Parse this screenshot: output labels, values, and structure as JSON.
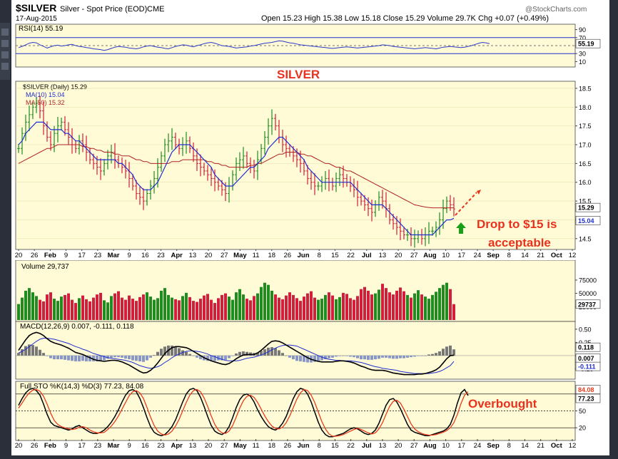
{
  "header": {
    "symbol": "$SILVER",
    "name": "Silver - Spot Price (EOD)",
    "exchange": "CME",
    "date": "17-Aug-2015",
    "ohlc": "Open 15.23  High 15.38  Low 15.18  Close 15.29  Volume 29.7K  Chg +0.07 (+0.49%)",
    "watermark": "@StockCharts.com"
  },
  "colors": {
    "panel_bg": "#fffbd6",
    "frame": "#2b2f3a",
    "up_bar": "#1e8c1e",
    "down_bar": "#d21e3c",
    "ma10": "#1f2fd0",
    "ma50": "#b22222",
    "annotation": "#e8321e",
    "rsi_line": "#2a3bc9",
    "macd_hist": "#8896c8",
    "sto_d": "#e83c1e"
  },
  "chart_data": [
    {
      "panel": "rsi",
      "type": "line",
      "legend": "RSI(14) 55.19",
      "last_value_label": "55.19",
      "y_ticks": [
        "90",
        "70",
        "50",
        "30",
        "10"
      ],
      "ylim": [
        0,
        100
      ],
      "reference_lines": [
        70,
        30
      ],
      "values": [
        45,
        48,
        52,
        56,
        58,
        57,
        52,
        48,
        44,
        47,
        50,
        51,
        49,
        50,
        52,
        53,
        50,
        48,
        47,
        45,
        44,
        42,
        41,
        40,
        38,
        40,
        43,
        46,
        48,
        47,
        46,
        44,
        43,
        42,
        44,
        47,
        49,
        50,
        48,
        46,
        45,
        43,
        42,
        45,
        48,
        50,
        52,
        51,
        49,
        47,
        50,
        52,
        55,
        57,
        58,
        56,
        53,
        50,
        49,
        48,
        46,
        44,
        45,
        46,
        47,
        49,
        50,
        52,
        54,
        56,
        57,
        58,
        60,
        62,
        61,
        59,
        57,
        56,
        54,
        52,
        51,
        50,
        49,
        48,
        47,
        46,
        45,
        44,
        43,
        44,
        45,
        46,
        47,
        46,
        45,
        44,
        45,
        46,
        47,
        48,
        49,
        50,
        52,
        51,
        50,
        48,
        47,
        46,
        45,
        44,
        43,
        42,
        43,
        44,
        45,
        44,
        43,
        42,
        44,
        46,
        47,
        48,
        47,
        46,
        45,
        46,
        48,
        50,
        53,
        56,
        58,
        57,
        55
      ]
    },
    {
      "panel": "price",
      "type": "ohlc",
      "title": "SILVER",
      "legend": [
        "$SILVER (Daily) 15.29",
        "MA(10) 15.04",
        "MA(50) 15.32"
      ],
      "price_tags": [
        "15.29",
        "15.04"
      ],
      "y_ticks": [
        "18.5",
        "18.0",
        "17.5",
        "17.0",
        "16.5",
        "16.0",
        "15.5",
        "15.0",
        "14.5"
      ],
      "ylim": [
        14.25,
        18.65
      ],
      "annotation": [
        "Drop to $15 is",
        "acceptable"
      ],
      "x_tick_labels": [
        "20",
        "26",
        "Feb",
        "9",
        "17",
        "23",
        "Mar",
        "9",
        "16",
        "23",
        "Apr",
        "13",
        "20",
        "27",
        "May",
        "11",
        "18",
        "26",
        "Jun",
        "8",
        "15",
        "22",
        "Jul",
        "13",
        "20",
        "27",
        "Aug",
        "10",
        "17",
        "24",
        "Sep",
        "8",
        "14",
        "21",
        "Oct",
        "12"
      ],
      "closes": [
        16.9,
        17.3,
        17.6,
        17.8,
        18.0,
        18.1,
        17.9,
        17.5,
        17.2,
        17.0,
        17.3,
        17.5,
        17.6,
        17.4,
        17.2,
        17.0,
        16.9,
        17.1,
        17.0,
        16.8,
        16.6,
        16.5,
        16.4,
        16.3,
        16.5,
        16.7,
        16.8,
        16.6,
        16.5,
        16.4,
        16.3,
        16.1,
        15.9,
        15.7,
        15.6,
        15.5,
        15.7,
        15.9,
        16.1,
        16.4,
        16.7,
        17.0,
        17.1,
        17.2,
        17.0,
        16.9,
        17.0,
        17.1,
        16.9,
        16.7,
        16.5,
        16.4,
        16.3,
        16.2,
        16.1,
        16.0,
        15.9,
        15.8,
        15.7,
        15.9,
        16.2,
        16.5,
        16.6,
        16.7,
        16.5,
        16.4,
        16.3,
        16.6,
        16.9,
        17.2,
        17.5,
        17.7,
        17.5,
        17.2,
        17.0,
        16.9,
        16.8,
        16.7,
        16.6,
        16.5,
        16.3,
        16.1,
        16.0,
        15.9,
        15.9,
        16.0,
        16.1,
        16.0,
        15.9,
        16.1,
        16.2,
        16.1,
        16.0,
        15.9,
        15.8,
        15.6,
        15.5,
        15.4,
        15.3,
        15.2,
        15.4,
        15.6,
        15.5,
        15.3,
        15.0,
        14.9,
        14.8,
        14.7,
        14.6,
        14.6,
        14.5,
        14.5,
        14.6,
        14.5,
        14.6,
        14.7,
        14.7,
        14.8,
        15.0,
        15.3,
        15.5,
        15.4,
        15.29
      ],
      "ma10": [
        17.0,
        17.1,
        17.3,
        17.4,
        17.5,
        17.6,
        17.6,
        17.6,
        17.5,
        17.4,
        17.4,
        17.4,
        17.4,
        17.3,
        17.3,
        17.2,
        17.1,
        17.1,
        17.0,
        16.9,
        16.8,
        16.7,
        16.6,
        16.6,
        16.6,
        16.6,
        16.6,
        16.6,
        16.5,
        16.5,
        16.4,
        16.3,
        16.2,
        16.0,
        15.9,
        15.8,
        15.8,
        15.8,
        15.9,
        16.0,
        16.2,
        16.4,
        16.6,
        16.8,
        16.9,
        17.0,
        17.0,
        17.0,
        17.0,
        16.9,
        16.8,
        16.7,
        16.6,
        16.5,
        16.4,
        16.2,
        16.1,
        16.0,
        15.9,
        15.9,
        15.9,
        16.0,
        16.1,
        16.2,
        16.3,
        16.4,
        16.4,
        16.5,
        16.6,
        16.7,
        16.9,
        17.0,
        17.1,
        17.2,
        17.2,
        17.1,
        17.0,
        16.9,
        16.8,
        16.7,
        16.6,
        16.4,
        16.3,
        16.2,
        16.1,
        16.0,
        16.0,
        16.0,
        16.0,
        16.0,
        16.0,
        16.0,
        16.0,
        16.0,
        15.9,
        15.8,
        15.7,
        15.6,
        15.5,
        15.4,
        15.4,
        15.4,
        15.4,
        15.3,
        15.2,
        15.1,
        15.0,
        14.9,
        14.8,
        14.7,
        14.6,
        14.6,
        14.6,
        14.6,
        14.6,
        14.6,
        14.6,
        14.7,
        14.8,
        14.9,
        15.0,
        15.0,
        15.04
      ],
      "ma50": [
        16.5,
        16.55,
        16.6,
        16.65,
        16.7,
        16.75,
        16.8,
        16.85,
        16.9,
        16.9,
        16.95,
        17.0,
        17.0,
        17.0,
        17.0,
        17.0,
        17.0,
        17.0,
        16.95,
        16.95,
        16.9,
        16.9,
        16.85,
        16.85,
        16.8,
        16.8,
        16.8,
        16.75,
        16.75,
        16.7,
        16.7,
        16.7,
        16.65,
        16.6,
        16.6,
        16.55,
        16.55,
        16.5,
        16.5,
        16.5,
        16.5,
        16.5,
        16.5,
        16.55,
        16.55,
        16.55,
        16.6,
        16.6,
        16.6,
        16.6,
        16.6,
        16.6,
        16.6,
        16.55,
        16.55,
        16.5,
        16.5,
        16.45,
        16.45,
        16.4,
        16.4,
        16.4,
        16.4,
        16.4,
        16.4,
        16.45,
        16.45,
        16.5,
        16.5,
        16.55,
        16.6,
        16.65,
        16.7,
        16.75,
        16.75,
        16.8,
        16.8,
        16.8,
        16.8,
        16.75,
        16.75,
        16.7,
        16.7,
        16.65,
        16.6,
        16.55,
        16.5,
        16.5,
        16.45,
        16.4,
        16.4,
        16.35,
        16.3,
        16.3,
        16.25,
        16.2,
        16.15,
        16.1,
        16.05,
        16.0,
        15.95,
        15.9,
        15.85,
        15.8,
        15.75,
        15.7,
        15.65,
        15.6,
        15.55,
        15.5,
        15.45,
        15.4,
        15.38,
        15.36,
        15.34,
        15.33,
        15.32,
        15.32,
        15.32,
        15.32,
        15.32,
        15.32,
        15.32
      ]
    },
    {
      "panel": "volume",
      "type": "bar",
      "legend": "Volume 29,737",
      "last_value_label": "29737",
      "y_ticks": [
        "75000",
        "50000",
        "25000"
      ],
      "ylim": [
        0,
        95000
      ],
      "values": [
        30000,
        42000,
        55000,
        60000,
        52000,
        45000,
        38000,
        35000,
        48000,
        52000,
        40000,
        36000,
        44000,
        47000,
        50000,
        38000,
        32000,
        41000,
        46000,
        39000,
        35000,
        42000,
        48000,
        51000,
        37000,
        33000,
        45000,
        50000,
        54000,
        42000,
        38000,
        46000,
        40000,
        36000,
        43000,
        48000,
        52000,
        44000,
        38000,
        41000,
        55000,
        60000,
        47000,
        42000,
        39000,
        37000,
        45000,
        51000,
        43000,
        36000,
        34000,
        40000,
        46000,
        49000,
        38000,
        32000,
        41000,
        47000,
        50000,
        44000,
        38000,
        52000,
        58000,
        48000,
        40000,
        37000,
        45000,
        50000,
        62000,
        70000,
        66000,
        55000,
        48000,
        42000,
        39000,
        46000,
        52000,
        47000,
        41000,
        36000,
        44000,
        50000,
        54000,
        42000,
        38000,
        40000,
        47000,
        52000,
        46000,
        39000,
        43000,
        51000,
        49000,
        41000,
        38000,
        45000,
        58000,
        62000,
        55000,
        48000,
        50000,
        57000,
        68000,
        60000,
        52000,
        48000,
        55000,
        61000,
        54000,
        47000,
        42000,
        50000,
        56000,
        48000,
        44000,
        40000,
        47000,
        53000,
        60000,
        66000,
        70000,
        58000,
        29737
      ]
    },
    {
      "panel": "macd",
      "type": "line",
      "legend": "MACD(12,26,9) 0.007, -0.111, 0.118",
      "value_tags": [
        "0.118",
        "0.007",
        "-0.111"
      ],
      "y_ticks": [
        "0.50",
        "0.25",
        "0.00",
        "-0.25"
      ],
      "ylim": [
        -0.42,
        0.62
      ],
      "macd": [
        0.1,
        0.2,
        0.3,
        0.38,
        0.42,
        0.44,
        0.42,
        0.38,
        0.32,
        0.27,
        0.24,
        0.22,
        0.2,
        0.17,
        0.14,
        0.1,
        0.06,
        0.04,
        0.02,
        -0.01,
        -0.04,
        -0.07,
        -0.09,
        -0.1,
        -0.11,
        -0.1,
        -0.09,
        -0.09,
        -0.1,
        -0.12,
        -0.15,
        -0.18,
        -0.22,
        -0.26,
        -0.3,
        -0.33,
        -0.32,
        -0.28,
        -0.22,
        -0.14,
        -0.05,
        0.04,
        0.1,
        0.15,
        0.17,
        0.17,
        0.16,
        0.15,
        0.12,
        0.08,
        0.04,
        0.0,
        -0.04,
        -0.07,
        -0.1,
        -0.12,
        -0.14,
        -0.16,
        -0.17,
        -0.15,
        -0.11,
        -0.06,
        -0.02,
        0.01,
        0.02,
        0.02,
        0.02,
        0.05,
        0.1,
        0.16,
        0.22,
        0.27,
        0.28,
        0.27,
        0.24,
        0.2,
        0.16,
        0.12,
        0.08,
        0.04,
        0.0,
        -0.04,
        -0.07,
        -0.09,
        -0.11,
        -0.12,
        -0.12,
        -0.12,
        -0.12,
        -0.11,
        -0.1,
        -0.1,
        -0.11,
        -0.12,
        -0.14,
        -0.17,
        -0.2,
        -0.22,
        -0.25,
        -0.27,
        -0.28,
        -0.28,
        -0.28,
        -0.29,
        -0.31,
        -0.33,
        -0.34,
        -0.35,
        -0.36,
        -0.36,
        -0.36,
        -0.36,
        -0.35,
        -0.35,
        -0.34,
        -0.32,
        -0.3,
        -0.27,
        -0.22,
        -0.14,
        -0.06,
        0.0,
        0.007
      ],
      "signal": [
        0.05,
        0.08,
        0.12,
        0.17,
        0.22,
        0.27,
        0.31,
        0.33,
        0.33,
        0.32,
        0.31,
        0.29,
        0.27,
        0.25,
        0.23,
        0.2,
        0.17,
        0.15,
        0.12,
        0.1,
        0.07,
        0.04,
        0.02,
        0.0,
        -0.02,
        -0.04,
        -0.05,
        -0.06,
        -0.07,
        -0.08,
        -0.09,
        -0.11,
        -0.13,
        -0.16,
        -0.19,
        -0.21,
        -0.23,
        -0.24,
        -0.23,
        -0.21,
        -0.18,
        -0.13,
        -0.09,
        -0.04,
        0.0,
        0.03,
        0.06,
        0.08,
        0.09,
        0.09,
        0.08,
        0.07,
        0.05,
        0.03,
        0.0,
        -0.02,
        -0.05,
        -0.07,
        -0.09,
        -0.1,
        -0.1,
        -0.1,
        -0.09,
        -0.07,
        -0.05,
        -0.04,
        -0.03,
        -0.01,
        0.01,
        0.04,
        0.07,
        0.11,
        0.14,
        0.17,
        0.19,
        0.2,
        0.2,
        0.19,
        0.18,
        0.15,
        0.12,
        0.09,
        0.06,
        0.03,
        0.0,
        -0.03,
        -0.05,
        -0.07,
        -0.08,
        -0.09,
        -0.09,
        -0.1,
        -0.1,
        -0.1,
        -0.11,
        -0.12,
        -0.13,
        -0.15,
        -0.17,
        -0.19,
        -0.21,
        -0.22,
        -0.24,
        -0.25,
        -0.26,
        -0.27,
        -0.28,
        -0.3,
        -0.31,
        -0.32,
        -0.33,
        -0.34,
        -0.34,
        -0.34,
        -0.34,
        -0.34,
        -0.33,
        -0.32,
        -0.3,
        -0.27,
        -0.23,
        -0.19,
        -0.111
      ]
    },
    {
      "panel": "stochastic",
      "type": "line",
      "legend": "Full STO %K(14,3) %D(3) 77.23, 84.08",
      "value_tags": [
        "84.08",
        "77.23"
      ],
      "annotation": "Overbought",
      "y_ticks": [
        "80",
        "50",
        "20"
      ],
      "ylim": [
        0,
        100
      ],
      "reference_lines": [
        80,
        50,
        20
      ],
      "k": [
        60,
        72,
        82,
        88,
        90,
        86,
        78,
        62,
        44,
        30,
        24,
        22,
        20,
        18,
        16,
        18,
        22,
        24,
        20,
        16,
        12,
        10,
        10,
        12,
        16,
        22,
        30,
        40,
        52,
        66,
        78,
        86,
        88,
        84,
        72,
        56,
        38,
        22,
        12,
        8,
        6,
        8,
        14,
        22,
        34,
        50,
        66,
        80,
        88,
        90,
        86,
        74,
        58,
        40,
        24,
        14,
        10,
        8,
        12,
        22,
        38,
        56,
        70,
        78,
        80,
        76,
        66,
        52,
        40,
        30,
        22,
        18,
        16,
        20,
        28,
        40,
        56,
        72,
        84,
        90,
        88,
        80,
        66,
        48,
        30,
        16,
        8,
        4,
        4,
        6,
        8,
        10,
        14,
        18,
        20,
        18,
        14,
        10,
        8,
        10,
        16,
        28,
        44,
        60,
        70,
        72,
        66,
        54,
        40,
        26,
        16,
        12,
        10,
        8,
        6,
        6,
        8,
        10,
        12,
        14,
        18,
        26,
        42,
        64,
        82,
        88,
        77.23
      ],
      "d": [
        55,
        64,
        74,
        82,
        87,
        88,
        85,
        76,
        62,
        46,
        33,
        26,
        22,
        20,
        18,
        17,
        18,
        21,
        22,
        20,
        16,
        13,
        11,
        11,
        12,
        17,
        23,
        31,
        41,
        53,
        65,
        77,
        84,
        86,
        82,
        72,
        56,
        39,
        24,
        14,
        9,
        7,
        9,
        14,
        23,
        35,
        50,
        65,
        78,
        86,
        88,
        84,
        73,
        58,
        41,
        26,
        16,
        11,
        10,
        14,
        24,
        39,
        55,
        68,
        76,
        78,
        74,
        65,
        53,
        41,
        31,
        23,
        19,
        18,
        21,
        29,
        41,
        56,
        71,
        82,
        88,
        86,
        78,
        65,
        48,
        31,
        18,
        9,
        5,
        5,
        6,
        8,
        11,
        14,
        17,
        19,
        17,
        14,
        11,
        9,
        11,
        18,
        29,
        44,
        58,
        67,
        69,
        64,
        53,
        40,
        27,
        18,
        13,
        10,
        8,
        7,
        7,
        8,
        10,
        12,
        15,
        20,
        29,
        44,
        63,
        78,
        84.08
      ]
    }
  ]
}
